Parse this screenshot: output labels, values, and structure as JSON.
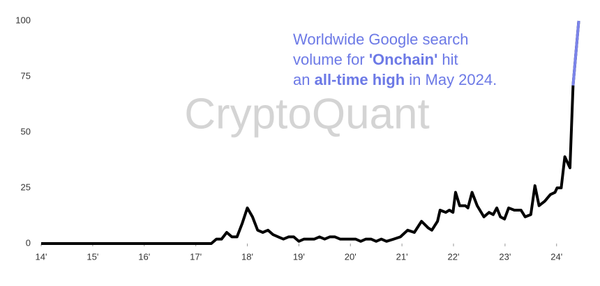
{
  "chart_data": {
    "type": "line",
    "watermark": "CryptoQuant",
    "annotation": [
      [
        {
          "text": "Worldwide Google search"
        }
      ],
      [
        {
          "text": "volume for "
        },
        {
          "text": "'Onchain'",
          "bold": true
        },
        {
          "text": " hit"
        }
      ],
      [
        {
          "text": "an "
        },
        {
          "text": "all-time high",
          "bold": true
        },
        {
          "text": " in May 2024."
        }
      ]
    ],
    "annotation_color": "#6c79e6",
    "x": [
      2014,
      2017.3,
      2017.4,
      2017.5,
      2017.6,
      2017.7,
      2017.8,
      2017.9,
      2018.0,
      2018.1,
      2018.2,
      2018.3,
      2018.4,
      2018.5,
      2018.6,
      2018.7,
      2018.8,
      2018.9,
      2019.0,
      2019.1,
      2019.2,
      2019.3,
      2019.4,
      2019.5,
      2019.6,
      2019.7,
      2019.8,
      2019.9,
      2020.0,
      2020.1,
      2020.2,
      2020.3,
      2020.4,
      2020.5,
      2020.6,
      2020.7,
      2020.84,
      2020.97,
      2021.11,
      2021.24,
      2021.38,
      2021.51,
      2021.58,
      2021.69,
      2021.74,
      2021.85,
      2021.92,
      2021.99,
      2022.04,
      2022.12,
      2022.23,
      2022.28,
      2022.36,
      2022.46,
      2022.59,
      2022.69,
      2022.77,
      2022.84,
      2022.91,
      2022.99,
      2023.07,
      2023.18,
      2023.31,
      2023.39,
      2023.5,
      2023.58,
      2023.66,
      2023.77,
      2023.88,
      2023.97,
      2024.01,
      2024.09,
      2024.16,
      2024.26,
      2024.32,
      2024.43
    ],
    "values": [
      0,
      0,
      2,
      2,
      5,
      3,
      3,
      9,
      16,
      12,
      6,
      5,
      6,
      4,
      3,
      2,
      3,
      3,
      1,
      2,
      2,
      2,
      3,
      2,
      3,
      3,
      2,
      2,
      2,
      2,
      1,
      2,
      2,
      1,
      2,
      1,
      2,
      3,
      6,
      5,
      10,
      7,
      6,
      10,
      15,
      14,
      15,
      14,
      23,
      17,
      17,
      16,
      23,
      17,
      12,
      14,
      13,
      16,
      12,
      11,
      16,
      15,
      15,
      12,
      13,
      26,
      17,
      19,
      22,
      23,
      25,
      25,
      39,
      34,
      71,
      100
    ],
    "color": "#000000",
    "highlight_last_color": "#7b84ea",
    "xlim": [
      2014,
      2024.45
    ],
    "xticks": [
      {
        "value": 2014,
        "label": "14'"
      },
      {
        "value": 2015,
        "label": "15'"
      },
      {
        "value": 2016,
        "label": "16'"
      },
      {
        "value": 2017,
        "label": "17'"
      },
      {
        "value": 2018,
        "label": "18'"
      },
      {
        "value": 2019,
        "label": "19'"
      },
      {
        "value": 2020,
        "label": "20'"
      },
      {
        "value": 2021,
        "label": "21'"
      },
      {
        "value": 2022,
        "label": "22'"
      },
      {
        "value": 2023,
        "label": "23'"
      },
      {
        "value": 2024,
        "label": "24'"
      }
    ],
    "ylim": [
      0,
      100
    ],
    "yticks": [
      0,
      25,
      50,
      75,
      100
    ],
    "grid": false
  }
}
